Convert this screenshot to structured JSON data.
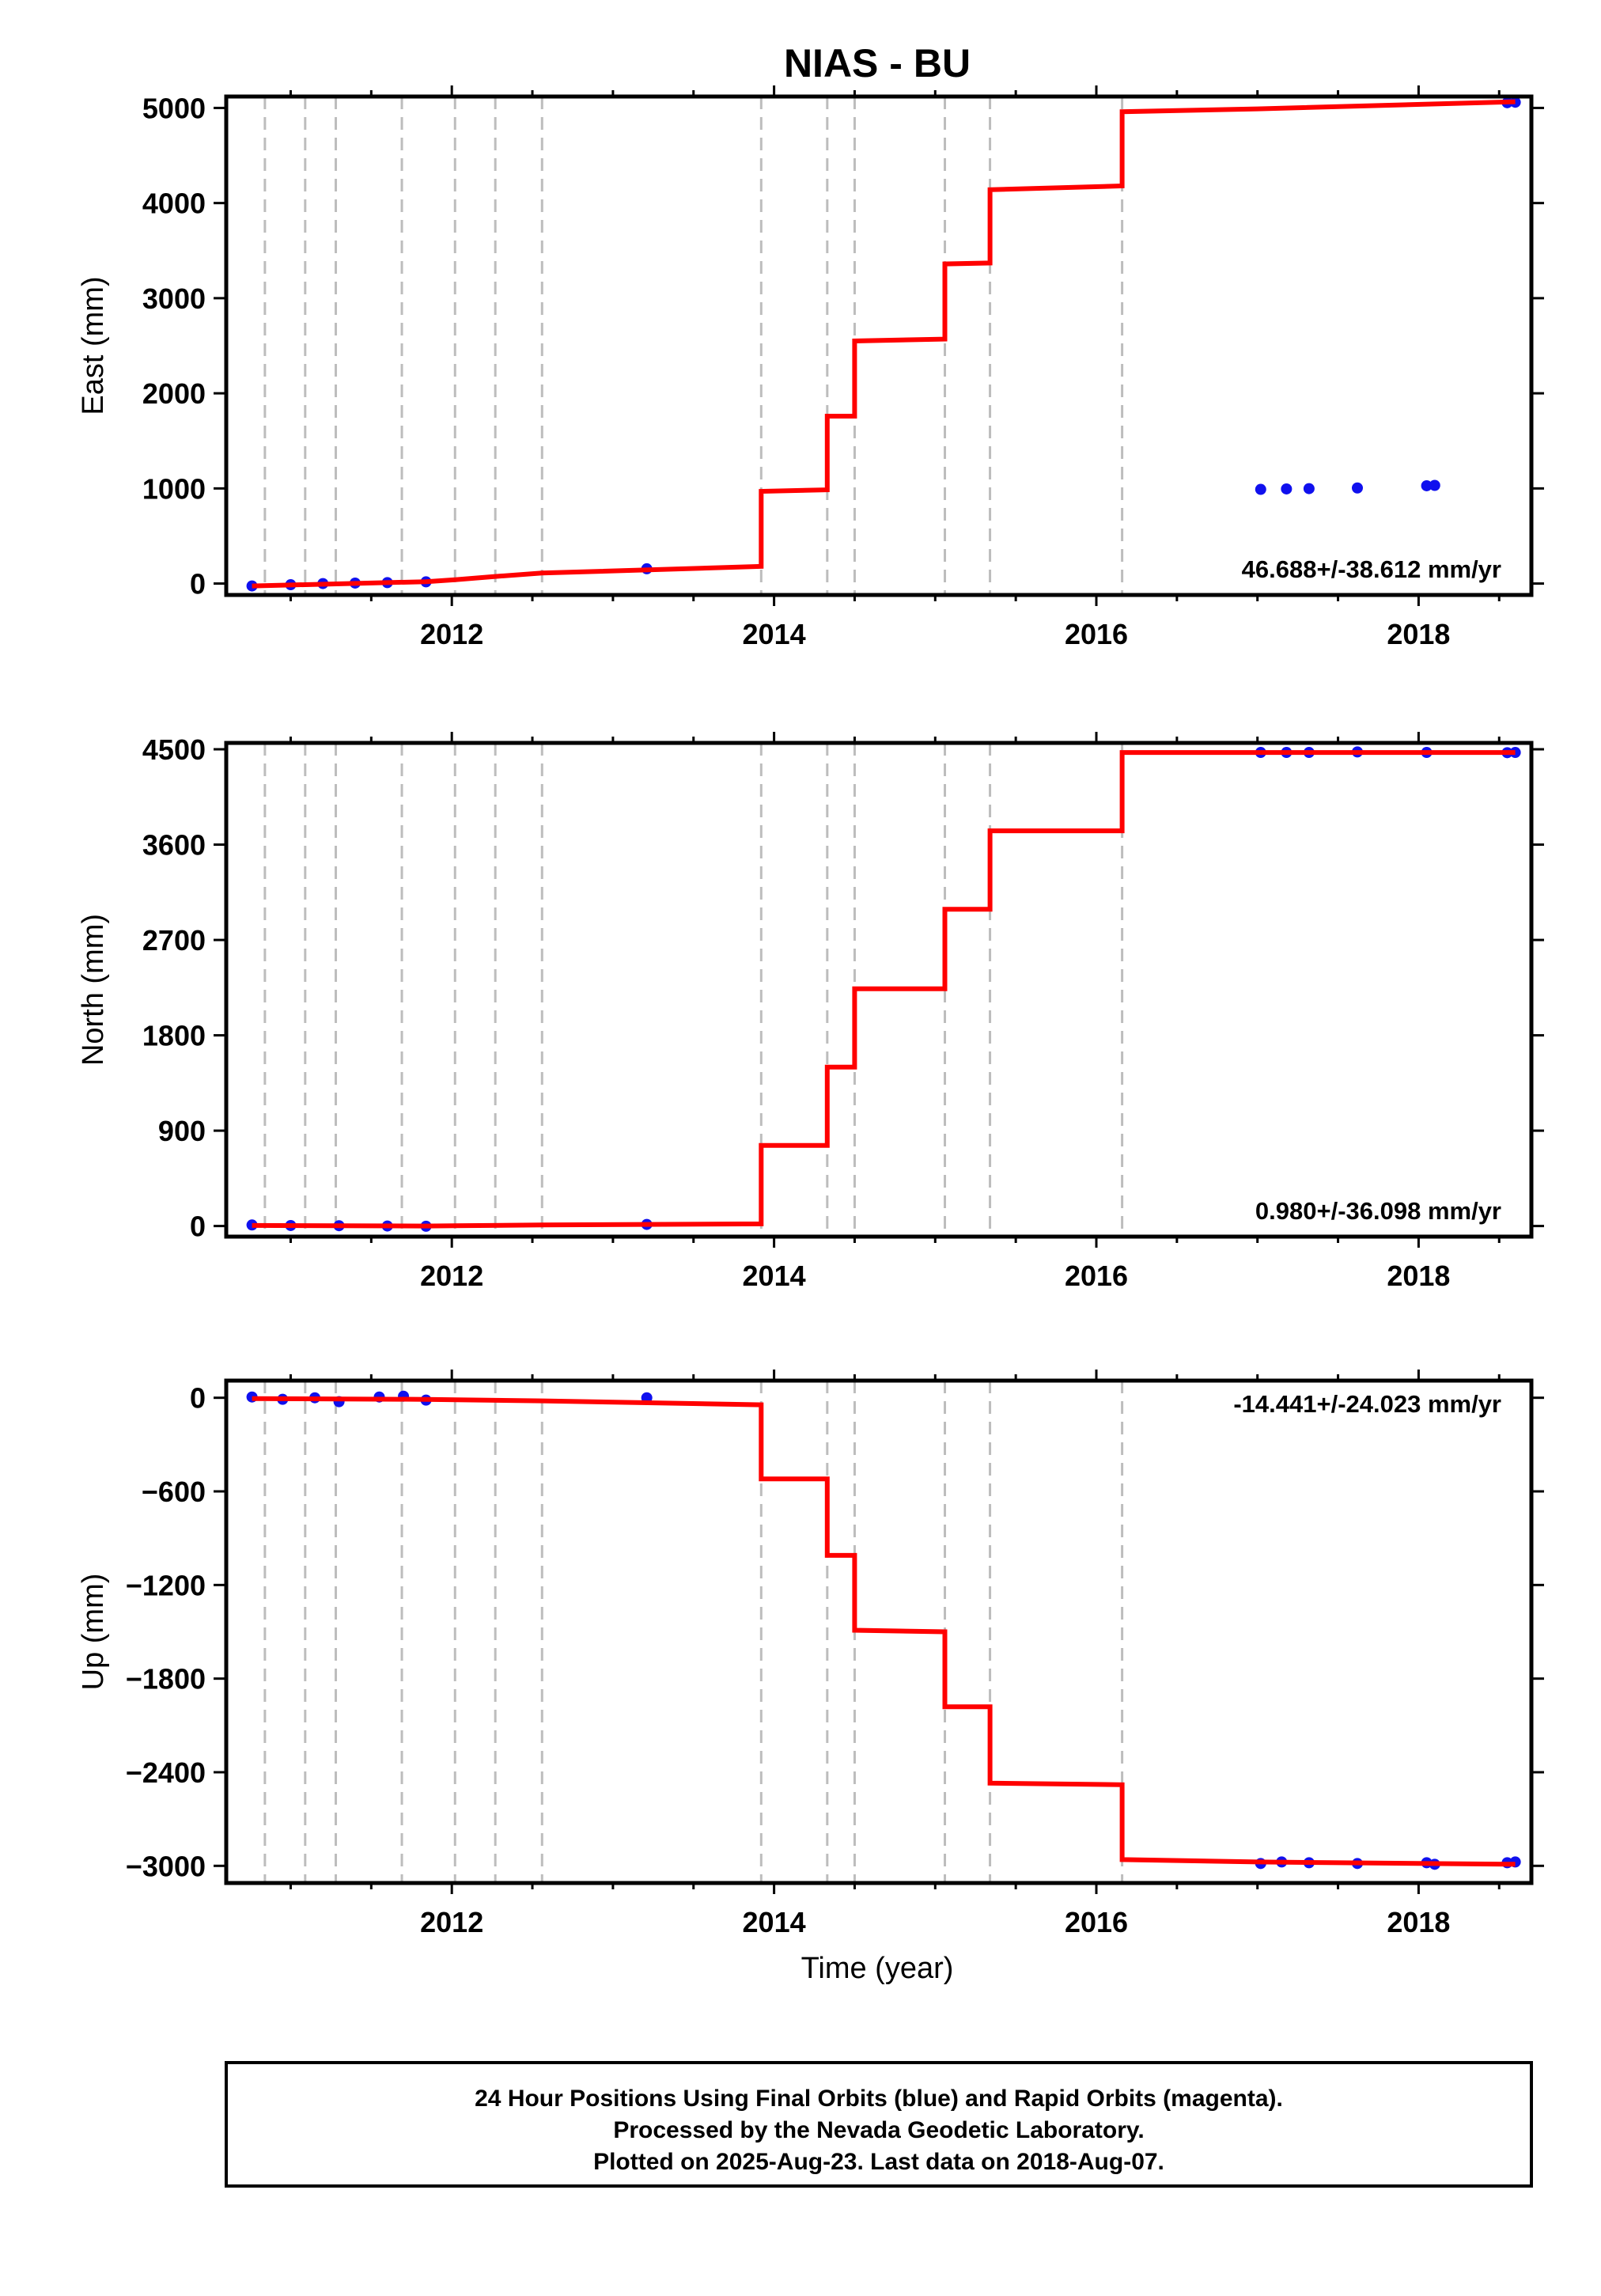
{
  "figure": {
    "title": "NIAS - BU",
    "xlabel": "Time (year)",
    "footnote": [
      "24 Hour Positions Using Final Orbits (blue) and Rapid Orbits (magenta).",
      "Processed by the Nevada Geodetic Laboratory.",
      "Plotted on 2025-Aug-23. Last data on 2018-Aug-07."
    ]
  },
  "colors": {
    "model": "#ff0000",
    "final": "#1010ee",
    "grid": "#bdbdbd",
    "frame": "#000000"
  },
  "chart_data": [
    {
      "type": "line",
      "ylabel": "East (mm)",
      "rate": "46.688+/-38.612 mm/yr",
      "xlim": [
        2010.6,
        2018.7
      ],
      "ylim": [
        -120,
        5120
      ],
      "x_ticks": [
        2012,
        2014,
        2016,
        2018
      ],
      "y_ticks": [
        0,
        1000,
        2000,
        3000,
        4000,
        5000
      ],
      "breaks": [
        2010.84,
        2011.09,
        2011.28,
        2011.69,
        2012.02,
        2012.27,
        2012.56,
        2013.92,
        2014.33,
        2014.5,
        2015.06,
        2015.34,
        2016.16
      ],
      "series": [
        {
          "role": "model",
          "x": [
            2010.76,
            2011.84,
            2012.02,
            2012.27,
            2012.56,
            2013.92,
            2013.92,
            2014.33,
            2014.33,
            2014.5,
            2014.5,
            2015.06,
            2015.06,
            2015.34,
            2015.34,
            2016.16,
            2016.16,
            2017.0,
            2018.6
          ],
          "y": [
            -25,
            20,
            40,
            75,
            110,
            180,
            970,
            985,
            1760,
            1760,
            2550,
            2570,
            3360,
            3370,
            4140,
            4180,
            4960,
            4990,
            5065
          ]
        },
        {
          "role": "final",
          "x": [
            2010.76,
            2011.0,
            2011.2,
            2011.4,
            2011.6,
            2011.84,
            2013.21,
            2017.02,
            2017.18,
            2017.32,
            2017.62,
            2018.05,
            2018.1,
            2018.55,
            2018.6
          ],
          "y": [
            -25,
            -12,
            0,
            5,
            10,
            18,
            155,
            990,
            995,
            998,
            1005,
            1028,
            1032,
            5055,
            5060
          ]
        }
      ]
    },
    {
      "type": "line",
      "ylabel": "North (mm)",
      "rate": "0.980+/-36.098 mm/yr",
      "xlim": [
        2010.6,
        2018.7
      ],
      "ylim": [
        -100,
        4560
      ],
      "x_ticks": [
        2012,
        2014,
        2016,
        2018
      ],
      "y_ticks": [
        0,
        900,
        1800,
        2700,
        3600,
        4500
      ],
      "breaks": [
        2010.84,
        2011.09,
        2011.28,
        2011.69,
        2012.02,
        2012.27,
        2012.56,
        2013.92,
        2014.33,
        2014.5,
        2015.06,
        2015.34,
        2016.16
      ],
      "series": [
        {
          "role": "model",
          "x": [
            2010.76,
            2011.84,
            2012.02,
            2012.56,
            2013.92,
            2013.92,
            2014.33,
            2014.33,
            2014.5,
            2014.5,
            2015.06,
            2015.06,
            2015.34,
            2015.34,
            2016.16,
            2016.16,
            2018.6
          ],
          "y": [
            5,
            0,
            2,
            10,
            20,
            760,
            760,
            1500,
            1500,
            2240,
            2240,
            2990,
            2990,
            3730,
            3730,
            4470,
            4470
          ]
        },
        {
          "role": "final",
          "x": [
            2010.76,
            2011.0,
            2011.3,
            2011.6,
            2011.84,
            2013.21,
            2017.02,
            2017.18,
            2017.32,
            2017.62,
            2018.05,
            2018.55,
            2018.6
          ],
          "y": [
            10,
            5,
            3,
            0,
            -2,
            15,
            4470,
            4470,
            4470,
            4475,
            4470,
            4468,
            4470
          ]
        }
      ]
    },
    {
      "type": "line",
      "ylabel": "Up (mm)",
      "rate": "-14.441+/-24.023 mm/yr",
      "xlim": [
        2010.6,
        2018.7
      ],
      "ylim": [
        -3110,
        110
      ],
      "x_ticks": [
        2012,
        2014,
        2016,
        2018
      ],
      "y_ticks": [
        0,
        -600,
        -1200,
        -1800,
        -2400,
        -3000
      ],
      "breaks": [
        2010.84,
        2011.09,
        2011.28,
        2011.69,
        2012.02,
        2012.27,
        2012.56,
        2013.92,
        2014.33,
        2014.5,
        2015.06,
        2015.34,
        2016.16
      ],
      "series": [
        {
          "role": "model",
          "x": [
            2010.76,
            2011.84,
            2012.56,
            2013.92,
            2013.92,
            2014.33,
            2014.33,
            2014.5,
            2014.5,
            2015.06,
            2015.06,
            2015.34,
            2015.34,
            2016.16,
            2016.16,
            2017.0,
            2018.6
          ],
          "y": [
            -5,
            -10,
            -20,
            -45,
            -520,
            -520,
            -1010,
            -1010,
            -1490,
            -1500,
            -1980,
            -1980,
            -2470,
            -2480,
            -2960,
            -2975,
            -2990
          ]
        },
        {
          "role": "final",
          "x": [
            2010.76,
            2010.95,
            2011.15,
            2011.3,
            2011.55,
            2011.7,
            2011.84,
            2013.21,
            2017.02,
            2017.15,
            2017.32,
            2017.62,
            2018.05,
            2018.1,
            2018.55,
            2018.6
          ],
          "y": [
            5,
            -10,
            0,
            -25,
            5,
            10,
            -15,
            0,
            -2985,
            -2975,
            -2980,
            -2985,
            -2980,
            -2990,
            -2980,
            -2975
          ]
        }
      ]
    }
  ]
}
